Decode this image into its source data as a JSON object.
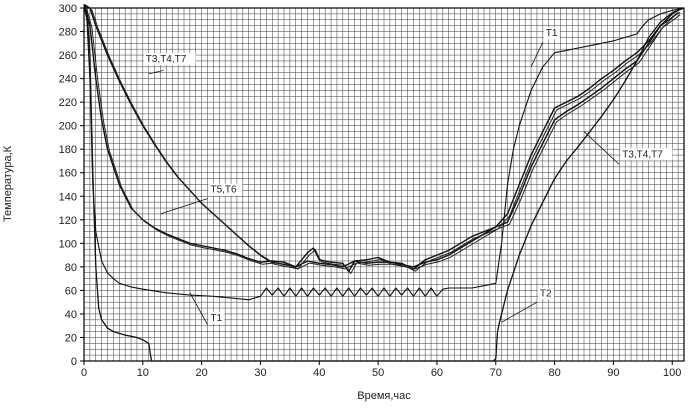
{
  "chart_data": {
    "type": "line",
    "xlabel": "Время,час",
    "ylabel": "Температура,К",
    "xlim": [
      0,
      102
    ],
    "ylim": [
      0,
      300
    ],
    "x_ticks": [
      0,
      10,
      20,
      30,
      40,
      50,
      60,
      70,
      80,
      90,
      100
    ],
    "y_ticks": [
      0,
      20,
      40,
      60,
      80,
      100,
      120,
      140,
      160,
      180,
      200,
      220,
      240,
      260,
      280,
      300
    ],
    "x_grid_step": 1,
    "y_grid_step": 5,
    "grid": true,
    "series": [
      {
        "name": "T1",
        "x": [
          0,
          0.5,
          1,
          1.5,
          2,
          3,
          4,
          5,
          6,
          8,
          10,
          14,
          18,
          22,
          26,
          28,
          30,
          31,
          32,
          33,
          34,
          35,
          36,
          37,
          38,
          39,
          40,
          41,
          42,
          43,
          44,
          45,
          46,
          47,
          48,
          49,
          50,
          51,
          52,
          53,
          54,
          55,
          56,
          57,
          58,
          59,
          60,
          61,
          62,
          64,
          66,
          68,
          70,
          71,
          72,
          73,
          74,
          75,
          76,
          77,
          78,
          79,
          80,
          82,
          84,
          86,
          88,
          90,
          92,
          94,
          95,
          96,
          98,
          100,
          102
        ],
        "y": [
          302,
          290,
          240,
          150,
          110,
          85,
          75,
          70,
          66,
          63,
          61,
          58,
          56,
          55,
          53,
          52,
          55,
          62,
          56,
          62,
          55,
          62,
          55,
          62,
          55,
          62,
          56,
          62,
          55,
          62,
          55,
          62,
          55,
          62,
          56,
          62,
          55,
          62,
          55,
          62,
          56,
          62,
          55,
          62,
          55,
          62,
          55,
          61,
          62,
          62,
          62,
          64,
          66,
          100,
          150,
          180,
          200,
          215,
          230,
          240,
          250,
          256,
          262,
          264,
          266,
          268,
          270,
          272,
          275,
          278,
          285,
          290,
          295,
          298,
          300
        ]
      },
      {
        "name": "T2",
        "x": [
          0,
          0.5,
          1,
          1.5,
          2,
          2.5,
          3,
          4,
          5,
          7,
          9,
          10,
          11,
          11.3,
          11.5,
          69.6,
          70,
          70.3,
          70.6,
          71,
          72,
          74,
          76,
          78,
          80,
          82,
          84,
          86,
          88,
          90,
          92,
          94,
          96,
          98,
          100,
          102
        ],
        "y": [
          303,
          300,
          260,
          160,
          80,
          45,
          35,
          28,
          25,
          22,
          20,
          18,
          15,
          5,
          0,
          0,
          2,
          25,
          32,
          40,
          60,
          90,
          115,
          135,
          155,
          170,
          182,
          195,
          208,
          222,
          238,
          255,
          275,
          288,
          296,
          300
        ]
      },
      {
        "name": "T3,T4,T7",
        "x": [
          0,
          1,
          2,
          4,
          6,
          8,
          10,
          12,
          14,
          16,
          18,
          20,
          22,
          24,
          26,
          28,
          30,
          32,
          34,
          36,
          38,
          40,
          42,
          44,
          46,
          48,
          50,
          52,
          54,
          56,
          58,
          60,
          62,
          64,
          66,
          68,
          70,
          72,
          74,
          76,
          78,
          80,
          82,
          84,
          86,
          88,
          90,
          92,
          94,
          96,
          98,
          100,
          101
        ],
        "y": [
          303,
          300,
          285,
          260,
          238,
          218,
          200,
          184,
          169,
          156,
          145,
          134,
          125,
          116,
          107,
          98,
          90,
          84,
          82,
          80,
          85,
          83,
          82,
          80,
          85,
          83,
          84,
          84,
          82,
          80,
          84,
          86,
          90,
          96,
          102,
          108,
          114,
          118,
          140,
          165,
          185,
          205,
          212,
          218,
          225,
          232,
          240,
          248,
          255,
          270,
          285,
          295,
          298
        ]
      },
      {
        "name": "T5,T6",
        "x": [
          0,
          1,
          2,
          3,
          4,
          6,
          8,
          10,
          12,
          14,
          16,
          18,
          20,
          22,
          24,
          26,
          28,
          30,
          32,
          34,
          36,
          38,
          39,
          40,
          42,
          44,
          45,
          46,
          48,
          50,
          52,
          54,
          56,
          58,
          60,
          62,
          64,
          66,
          68,
          70,
          72,
          74,
          76,
          78,
          80,
          82,
          84,
          86,
          88,
          90,
          92,
          94,
          96,
          98,
          100,
          101
        ],
        "y": [
          303,
          285,
          240,
          205,
          180,
          150,
          130,
          120,
          113,
          108,
          104,
          100,
          98,
          96,
          94,
          91,
          87,
          84,
          85,
          84,
          80,
          92,
          96,
          86,
          84,
          83,
          76,
          85,
          86,
          88,
          84,
          83,
          78,
          86,
          90,
          94,
          100,
          106,
          110,
          114,
          125,
          150,
          175,
          195,
          215,
          220,
          225,
          232,
          240,
          247,
          255,
          262,
          272,
          285,
          292,
          296
        ]
      }
    ],
    "annotations": [
      {
        "text": "T3,T4,T7",
        "x": 10.5,
        "y": 254
      },
      {
        "text": "T5,T6",
        "x": 21.5,
        "y": 143
      },
      {
        "text": "T1",
        "x": 21.5,
        "y": 34
      },
      {
        "text": "T1",
        "x": 78.5,
        "y": 276
      },
      {
        "text": "T3,T4,T7",
        "x": 91.5,
        "y": 173
      },
      {
        "text": "T2",
        "x": 77.5,
        "y": 55
      }
    ]
  }
}
